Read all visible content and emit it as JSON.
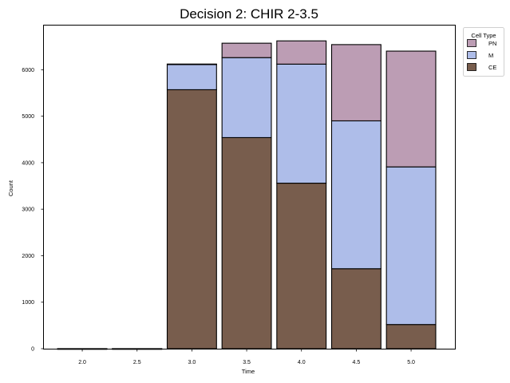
{
  "chart_data": {
    "type": "bar",
    "stacked": true,
    "title": "Decision 2: CHIR 2-3.5",
    "xlabel": "Time",
    "ylabel": "Count",
    "categories": [
      "2.0",
      "2.5",
      "3.0",
      "3.5",
      "4.0",
      "4.5",
      "5.0"
    ],
    "ylim": [
      0,
      6950
    ],
    "xlim": [
      1.65,
      5.4
    ],
    "yticks": [
      0,
      1000,
      2000,
      3000,
      4000,
      5000,
      6000
    ],
    "grid": false,
    "legend": {
      "title": "Cell Type",
      "placement": "outside-top-right",
      "entries": [
        "PN",
        "M",
        "CE"
      ]
    },
    "series": [
      {
        "name": "CE",
        "color": "#785d4d",
        "values": [
          0,
          0,
          5570,
          4540,
          3560,
          1720,
          520
        ]
      },
      {
        "name": "M",
        "color": "#aebde9",
        "values": [
          0,
          0,
          550,
          1720,
          2560,
          3180,
          3390
        ]
      },
      {
        "name": "PN",
        "color": "#bc9db4",
        "values": [
          0,
          0,
          0,
          310,
          500,
          1640,
          2490
        ]
      }
    ]
  }
}
